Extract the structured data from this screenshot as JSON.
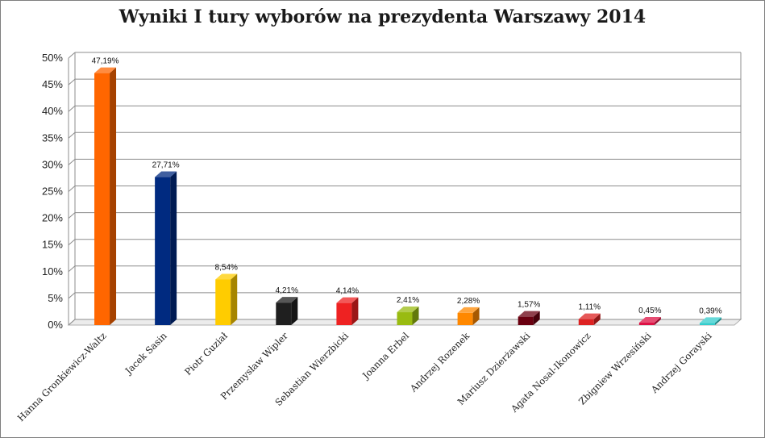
{
  "chart_data": {
    "type": "bar",
    "title": "Wyniki I tury wyborów na prezydenta Warszawy 2014",
    "xlabel": "",
    "ylabel": "",
    "ylim": [
      0,
      50
    ],
    "y_ticks": [
      "0%",
      "5%",
      "10%",
      "15%",
      "20%",
      "25%",
      "30%",
      "35%",
      "40%",
      "45%",
      "50%"
    ],
    "grid": true,
    "legend": "none",
    "categories": [
      "Hanna Gronkiewicz-Waltz",
      "Jacek Sasin",
      "Piotr Guział",
      "Przemysław Wipler",
      "Sebastian Wierzbicki",
      "Joanna Erbel",
      "Andrzej Rozenek",
      "Mariusz Dzierżawski",
      "Agata Nosal-Ikonowicz",
      "Zbigniew Wrzesiński",
      "Andrzej Gorayski"
    ],
    "values": [
      47.19,
      27.71,
      8.54,
      4.21,
      4.14,
      2.41,
      2.28,
      1.57,
      1.11,
      0.45,
      0.39
    ],
    "data_labels": [
      "47,19%",
      "27,71%",
      "8,54%",
      "4,21%",
      "4,14%",
      "2,41%",
      "2,28%",
      "1,57%",
      "1,11%",
      "0,45%",
      "0,39%"
    ],
    "colors": [
      "#ff6600",
      "#002a80",
      "#ffcc00",
      "#1f1f1f",
      "#ee2222",
      "#99bb11",
      "#ff8800",
      "#6a0010",
      "#dd2222",
      "#dd1144",
      "#33cccc"
    ]
  }
}
